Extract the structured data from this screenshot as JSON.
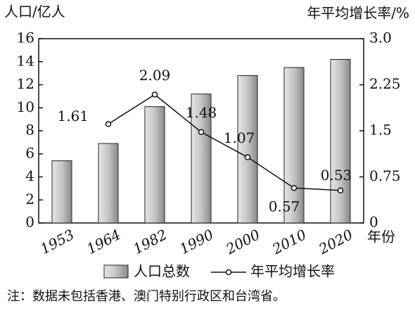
{
  "chart_data": {
    "type": "bar-line",
    "y_label": "人口/亿人",
    "y2_label": "年平均增长率/%",
    "x_label": "年份",
    "note": "注：数据未包括香港、澳门特别行政区和台湾省。",
    "categories": [
      "1953",
      "1964",
      "1982",
      "1990",
      "2000",
      "2010",
      "2020"
    ],
    "series": [
      {
        "name": "人口总数",
        "type": "bar",
        "color": "#bdbdbd",
        "values": [
          5.4,
          6.9,
          10.1,
          11.2,
          12.8,
          13.5,
          14.2
        ]
      },
      {
        "name": "年平均增长率",
        "type": "line",
        "axis": "y2",
        "color": "#111111",
        "values": [
          null,
          1.61,
          2.09,
          1.48,
          1.07,
          0.57,
          0.53
        ]
      }
    ],
    "ylim": [
      0,
      16
    ],
    "yticks": [
      0,
      2,
      4,
      6,
      8,
      10,
      12,
      14,
      16
    ],
    "y2lim": [
      0,
      3
    ],
    "y2ticks": [
      0,
      0.75,
      1.5,
      2.25,
      {
        "value": 3,
        "label": "3.0"
      }
    ],
    "grid": false
  }
}
